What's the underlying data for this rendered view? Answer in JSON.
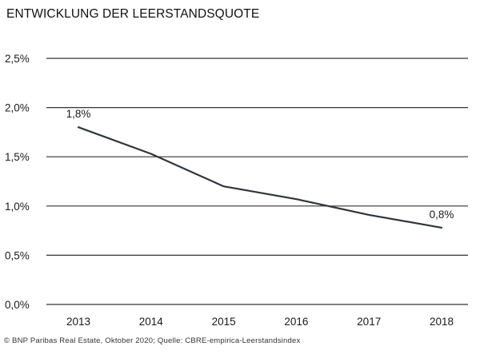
{
  "chart_data": {
    "type": "line",
    "title": "ENTWICKLUNG DER LEERSTANDSQUOTE",
    "categories": [
      "2013",
      "2014",
      "2015",
      "2016",
      "2017",
      "2018"
    ],
    "values": [
      1.8,
      1.53,
      1.2,
      1.07,
      0.91,
      0.78
    ],
    "yticks": [
      0,
      0.5,
      1.0,
      1.5,
      2.0,
      2.5
    ],
    "ytick_labels": [
      "0,0%",
      "0,5%",
      "1,0%",
      "1,5%",
      "2,0%",
      "2,5%"
    ],
    "ylim": [
      0,
      2.5
    ],
    "xlabel": "",
    "ylabel": "",
    "annotations": [
      {
        "category": "2013",
        "text": "1,8%"
      },
      {
        "category": "2018",
        "text": "0,8%"
      }
    ],
    "grid": true,
    "legend": "none"
  },
  "source": "© BNP Paribas Real Estate, Oktober 2020; Quelle: CBRE-empirica-Leerstandsindex",
  "colors": {
    "line": "#2e363d",
    "grid": "#333333"
  }
}
